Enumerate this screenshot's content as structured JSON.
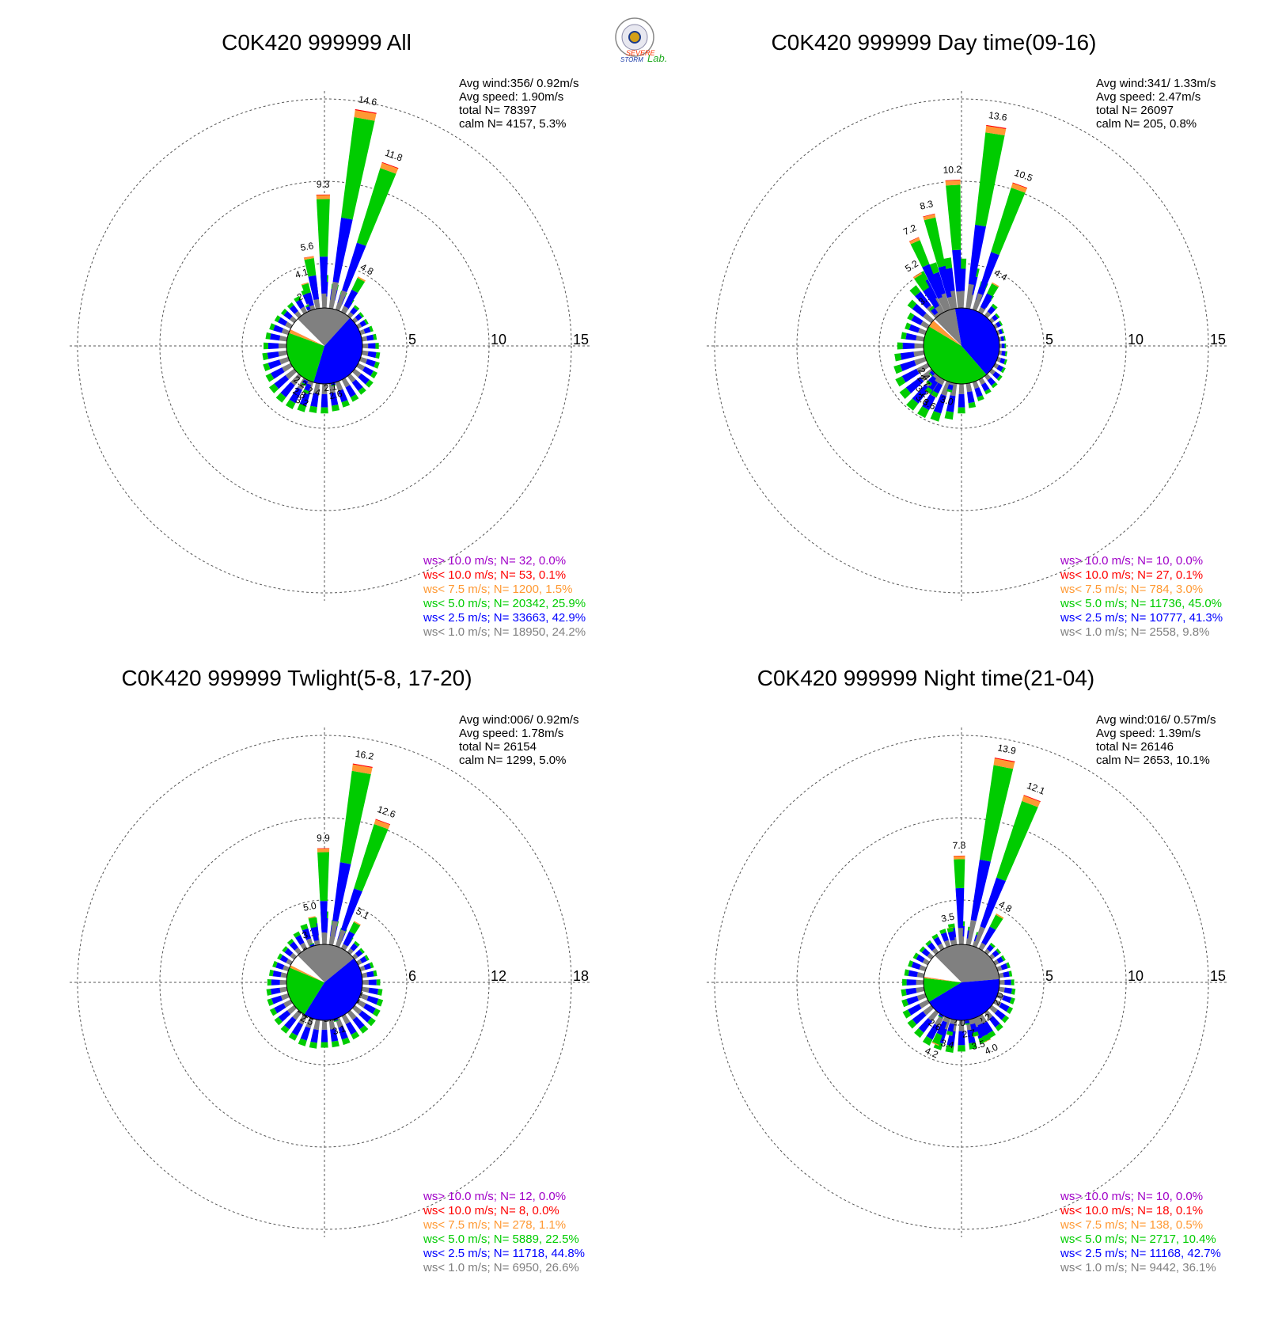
{
  "logo": {
    "line1": "SEVERE",
    "line2": "STORM",
    "line3": "Lab."
  },
  "legend_colors": [
    "#a000c8",
    "#ff0000",
    "#ff9933",
    "#00cc00",
    "#0000ff",
    "#808080"
  ],
  "chart_data": [
    {
      "type": "wind-rose",
      "title": "C0K420 999999 All",
      "stats": [
        "Avg wind:356/ 0.92m/s",
        "Avg speed: 1.90m/s",
        "total N=      78397",
        "calm N=   4157,   5.3%"
      ],
      "radial_ticks": [
        "5",
        "10",
        "15"
      ],
      "rmax": 15,
      "legend": [
        "ws> 10.0 m/s; N=    32,  0.0%",
        "ws< 10.0 m/s; N=    53,  0.1%",
        "ws<  7.5 m/s; N=  1200,  1.5%",
        "ws<  5.0 m/s; N= 20342, 25.9%",
        "ws<  2.5 m/s; N= 33663, 42.9%",
        "ws<  1.0 m/s; N= 18950, 24.2%"
      ],
      "center_pie": [
        24.2,
        42.9,
        25.9,
        1.5,
        0.1,
        5.3
      ],
      "labeled_bars": [
        {
          "dir": -22.5,
          "value": 2.8,
          "label": "2.8"
        },
        {
          "dir": -17.5,
          "value": 4.1,
          "label": "4.1"
        },
        {
          "dir": -10,
          "value": 5.6,
          "label": "5.6"
        },
        {
          "dir": -0.5,
          "value": 9.3,
          "label": "9.3"
        },
        {
          "dir": 10,
          "value": 14.6,
          "label": "14.6"
        },
        {
          "dir": 20,
          "value": 11.8,
          "label": "11.8"
        },
        {
          "dir": 29,
          "value": 4.8,
          "label": "4.8"
        },
        {
          "dir": 167,
          "value": 2.6,
          "label": "2.6"
        },
        {
          "dir": 172,
          "value": 2.1,
          "label": "2.1"
        },
        {
          "dir": 193,
          "value": 2.4,
          "label": "2.4"
        },
        {
          "dir": 202,
          "value": 3.2,
          "label": "3.2"
        },
        {
          "dir": 208,
          "value": 2.8,
          "label": "2.8"
        },
        {
          "dir": 214,
          "value": 2.2,
          "label": "2.2"
        }
      ],
      "minor_bars": [
        2,
        1.5,
        1.2,
        1.0,
        0.8,
        0.7,
        0.7,
        0.8,
        0.9,
        1.0,
        1.1,
        1.2,
        1.3,
        1.4,
        1.4,
        1.5,
        1.6,
        1.7,
        1.8,
        1.8,
        1.9,
        2.0,
        2.0,
        1.9,
        1.7,
        1.6,
        1.5,
        1.4,
        1.3,
        1.2,
        1.1,
        1.0,
        1.0,
        1.1,
        1.3,
        1.6
      ]
    },
    {
      "type": "wind-rose",
      "title": "C0K420 999999 Day time(09-16)",
      "stats": [
        "Avg wind:341/ 1.33m/s",
        "Avg speed: 2.47m/s",
        "total N=      26097",
        "calm N=    205,   0.8%"
      ],
      "radial_ticks": [
        "5",
        "10",
        "15"
      ],
      "rmax": 15,
      "legend": [
        "ws> 10.0 m/s; N=    10,  0.0%",
        "ws< 10.0 m/s; N=    27,  0.1%",
        "ws<  7.5 m/s; N=   784,  3.0%",
        "ws<  5.0 m/s; N= 11736, 45.0%",
        "ws<  2.5 m/s; N= 10777, 41.3%",
        "ws<  1.0 m/s; N=  2558,  9.8%"
      ],
      "center_pie": [
        9.8,
        41.3,
        45.0,
        3.0,
        0.1,
        0.8
      ],
      "labeled_bars": [
        {
          "dir": -38,
          "value": 3.1,
          "label": "3.1"
        },
        {
          "dir": -32,
          "value": 5.2,
          "label": "5.2"
        },
        {
          "dir": -24,
          "value": 7.2,
          "label": "7.2"
        },
        {
          "dir": -14,
          "value": 8.3,
          "label": "8.3"
        },
        {
          "dir": -3,
          "value": 10.2,
          "label": "10.2"
        },
        {
          "dir": 9,
          "value": 13.6,
          "label": "13.6"
        },
        {
          "dir": 20,
          "value": 10.5,
          "label": "10.5"
        },
        {
          "dir": 29,
          "value": 4.4,
          "label": "4.4"
        },
        {
          "dir": 195,
          "value": 3.0,
          "label": "3.0"
        },
        {
          "dir": 209,
          "value": 3.6,
          "label": "3.6"
        },
        {
          "dir": 216,
          "value": 3.6,
          "label": "3.6"
        },
        {
          "dir": 221,
          "value": 3.2,
          "label": "3.2"
        },
        {
          "dir": 227,
          "value": 2.7,
          "label": "2.7"
        },
        {
          "dir": 233,
          "value": 2.4,
          "label": "2.4"
        }
      ],
      "minor_bars": [
        3,
        2.5,
        1.8,
        1.3,
        0.9,
        0.6,
        0.5,
        0.4,
        0.4,
        0.4,
        0.5,
        0.6,
        0.7,
        0.8,
        0.9,
        1.0,
        1.2,
        1.5,
        1.8,
        2.2,
        2.5,
        2.6,
        2.6,
        2.4,
        2.2,
        2.0,
        1.8,
        1.6,
        1.4,
        1.3,
        1.4,
        1.8,
        2.3,
        2.8,
        3.0,
        3.1
      ]
    },
    {
      "type": "wind-rose",
      "title": "C0K420 999999 Twlight(5-8, 17-20)",
      "stats": [
        "Avg wind:006/ 0.92m/s",
        "Avg speed: 1.78m/s",
        "total N=      26154",
        "calm N=   1299,   5.0%"
      ],
      "radial_ticks": [
        "6",
        "12",
        "18"
      ],
      "rmax": 18,
      "legend": [
        "ws> 10.0 m/s; N=    12,  0.0%",
        "ws< 10.0 m/s; N=     8,  0.0%",
        "ws<  7.5 m/s; N=   278,  1.1%",
        "ws<  5.0 m/s; N=  5889, 22.5%",
        "ws<  2.5 m/s; N= 11718, 44.8%",
        "ws<  1.0 m/s; N=  6950, 26.6%"
      ],
      "center_pie": [
        26.6,
        44.8,
        22.5,
        1.1,
        0.0,
        5.0
      ],
      "labeled_bars": [
        {
          "dir": -24,
          "value": 2.0,
          "label": "2.0"
        },
        {
          "dir": -18,
          "value": 3.1,
          "label": "3.1"
        },
        {
          "dir": -11,
          "value": 5.0,
          "label": "5.0"
        },
        {
          "dir": -0.5,
          "value": 9.9,
          "label": "9.9"
        },
        {
          "dir": 10,
          "value": 16.2,
          "label": "16.2"
        },
        {
          "dir": 20,
          "value": 12.6,
          "label": "12.6"
        },
        {
          "dir": 29,
          "value": 5.1,
          "label": "5.1"
        },
        {
          "dir": 113,
          "value": 2.1,
          "label": "2.1"
        },
        {
          "dir": 155,
          "value": 2.0,
          "label": "2.0"
        },
        {
          "dir": 163,
          "value": 3.1,
          "label": "3.1"
        },
        {
          "dir": 171,
          "value": 2.1,
          "label": "2.1"
        },
        {
          "dir": 205,
          "value": 2.5,
          "label": "2.5"
        },
        {
          "dir": 214,
          "value": 2.1,
          "label": "2.1"
        }
      ],
      "minor_bars": [
        2.4,
        1.8,
        1.4,
        1.1,
        1.0,
        0.9,
        0.9,
        1.0,
        1.1,
        1.3,
        1.5,
        1.7,
        1.8,
        1.9,
        1.9,
        1.9,
        2.0,
        2.0,
        2.0,
        2.1,
        2.1,
        2.0,
        1.9,
        1.8,
        1.7,
        1.6,
        1.5,
        1.4,
        1.3,
        1.2,
        1.1,
        1.1,
        1.2,
        1.4,
        1.7,
        2.0
      ]
    },
    {
      "type": "wind-rose",
      "title": "C0K420 999999 Night time(21-04)",
      "stats": [
        "Avg wind:016/ 0.57m/s",
        "Avg speed: 1.39m/s",
        "total N=      26146",
        "calm N=   2653,  10.1%"
      ],
      "radial_ticks": [
        "5",
        "10",
        "15"
      ],
      "rmax": 15,
      "legend": [
        "ws> 10.0 m/s; N=    10,  0.0%",
        "ws< 10.0 m/s; N=    18,  0.1%",
        "ws<  7.5 m/s; N=   138,  0.5%",
        "ws<  5.0 m/s; N=  2717, 10.4%",
        "ws<  2.5 m/s; N= 11168, 42.7%",
        "ws<  1.0 m/s; N=  9442, 36.1%"
      ],
      "center_pie": [
        36.1,
        42.7,
        10.4,
        0.5,
        0.1,
        10.1
      ],
      "labeled_bars": [
        {
          "dir": -12,
          "value": 3.5,
          "label": "3.5"
        },
        {
          "dir": -1,
          "value": 7.8,
          "label": "7.8"
        },
        {
          "dir": 11,
          "value": 13.9,
          "label": "13.9"
        },
        {
          "dir": 21,
          "value": 12.1,
          "label": "12.1"
        },
        {
          "dir": 30,
          "value": 4.8,
          "label": "4.8"
        },
        {
          "dir": 114,
          "value": 2.0,
          "label": "2.0"
        },
        {
          "dir": 148,
          "value": 2.2,
          "label": "2.2"
        },
        {
          "dir": 156,
          "value": 4.0,
          "label": "4.0"
        },
        {
          "dir": 165,
          "value": 3.5,
          "label": "3.5"
        },
        {
          "dir": 172,
          "value": 2.7,
          "label": "2.7"
        },
        {
          "dir": 184,
          "value": 2.0,
          "label": "2.0"
        },
        {
          "dir": 193,
          "value": 3.4,
          "label": "3.4"
        },
        {
          "dir": 203,
          "value": 4.2,
          "label": "4.2"
        },
        {
          "dir": 212,
          "value": 2.6,
          "label": "2.6"
        }
      ],
      "minor_bars": [
        1.4,
        1.1,
        0.9,
        0.8,
        0.7,
        0.7,
        0.7,
        0.8,
        0.8,
        0.9,
        1.0,
        1.1,
        1.2,
        1.3,
        1.4,
        1.5,
        1.6,
        1.8,
        1.9,
        2.0,
        2.0,
        2.0,
        1.9,
        1.8,
        1.7,
        1.5,
        1.4,
        1.3,
        1.2,
        1.1,
        1.0,
        0.9,
        0.9,
        1.0,
        1.1,
        1.3
      ]
    }
  ]
}
